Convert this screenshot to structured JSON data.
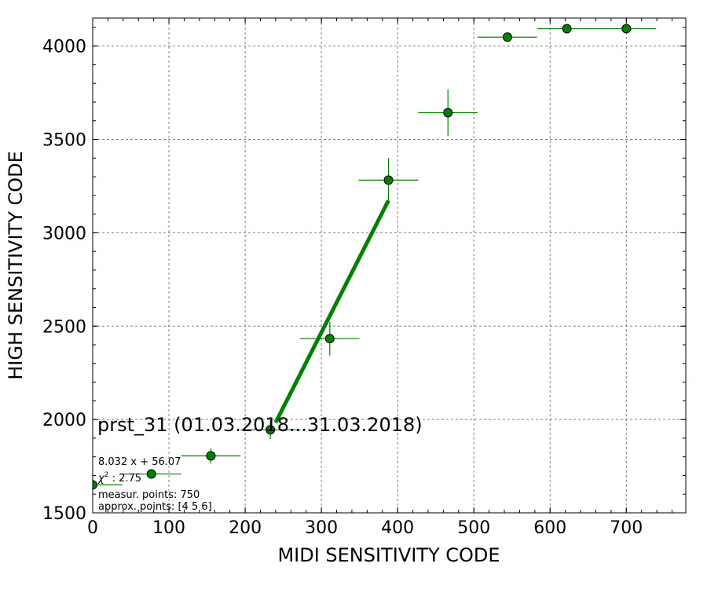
{
  "chart_data": {
    "type": "scatter",
    "title": "prst_31 (01.03.2018...31.03.2018)",
    "xlabel": "MIDI SENSITIVITY CODE",
    "ylabel": "HIGH SENSITIVITY CODE",
    "xlim": [
      0,
      778
    ],
    "ylim": [
      1500,
      4150
    ],
    "xticks": [
      0,
      100,
      200,
      300,
      400,
      500,
      600,
      700
    ],
    "yticks": [
      1500,
      2000,
      2500,
      3000,
      3500,
      4000
    ],
    "xtick_labels": [
      "0",
      "100",
      "200",
      "300",
      "400",
      "500",
      "600",
      "700"
    ],
    "ytick_labels": [
      "1500",
      "2000",
      "2500",
      "3000",
      "3500",
      "4000"
    ],
    "grid": true,
    "colors": {
      "points": "#008000",
      "fit_line": "#008000",
      "grid": "#808080"
    },
    "series": [
      {
        "x": [
          0,
          77,
          155,
          233,
          311,
          388,
          466,
          544,
          622,
          700
        ],
        "y": [
          1650,
          1708,
          1805,
          1945,
          2433,
          3282,
          3643,
          4048,
          4093,
          4093
        ],
        "x_err": [
          39,
          39,
          39,
          39,
          39,
          39,
          39,
          39,
          39,
          39
        ],
        "y_err": [
          10,
          15,
          40,
          50,
          90,
          120,
          125,
          10,
          10,
          10
        ]
      }
    ],
    "fit_line": {
      "x": [
        240,
        388
      ],
      "y": [
        1984,
        3173
      ]
    },
    "annotations": {
      "fit_equation": "8.032 x + 56.07",
      "chi2_symbol": "χ",
      "chi2_sup": "2",
      "chi2_value": " : 2.75",
      "measur_points": "measur. points: 750",
      "approx_points": "approx. points: [4 5 6]"
    }
  }
}
